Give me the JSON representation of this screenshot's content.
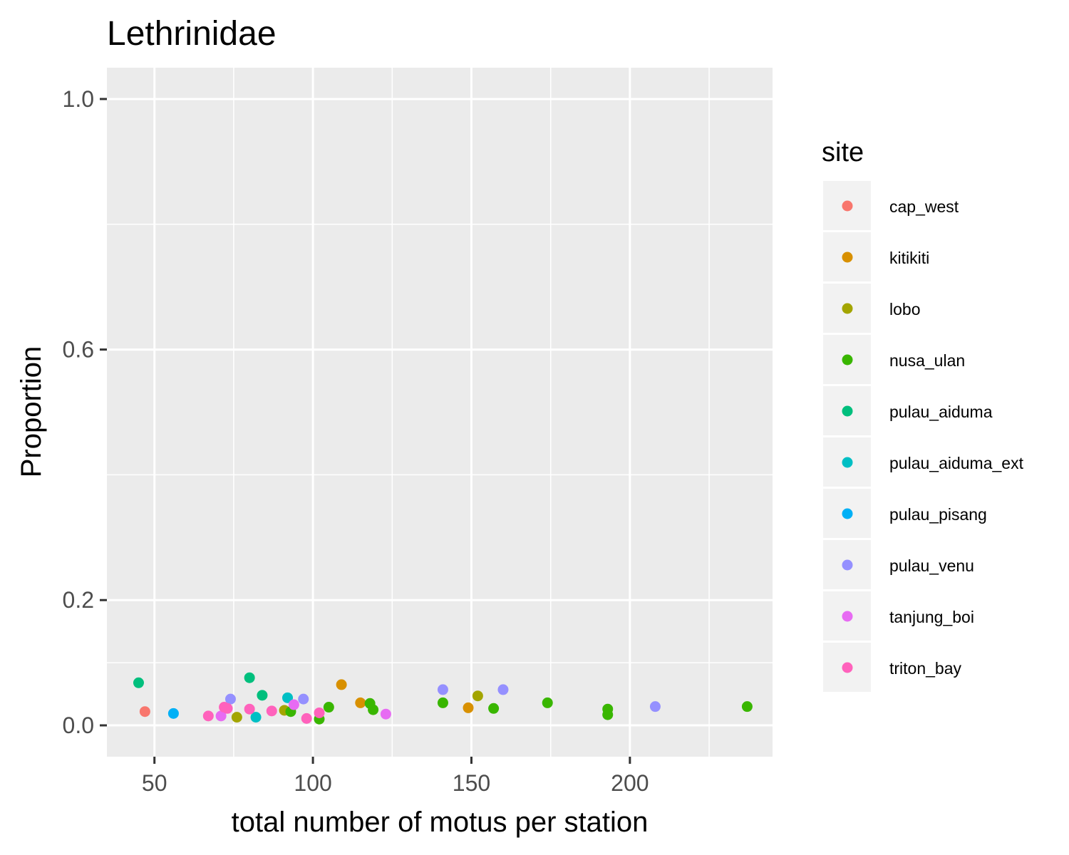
{
  "chart_data": {
    "type": "scatter",
    "title": "Lethrinidae",
    "xlabel": "total number of motus per station",
    "ylabel": "Proportion",
    "xlim": [
      35,
      245
    ],
    "ylim": [
      -0.05,
      1.05
    ],
    "x_ticks": [
      50,
      100,
      150,
      200
    ],
    "x_tick_labels": [
      "50",
      "100",
      "150",
      "200"
    ],
    "y_ticks": [
      0.0,
      0.2,
      0.6,
      1.0
    ],
    "y_tick_labels": [
      "0.0",
      "0.2",
      "0.6",
      "1.0"
    ],
    "y_minor_ticks": [
      0.1,
      0.4,
      0.8
    ],
    "grid": true,
    "legend": {
      "title": "site",
      "position": "right"
    },
    "series": [
      {
        "name": "cap_west",
        "color": "#F8766D",
        "points": [
          [
            47,
            0.022
          ]
        ]
      },
      {
        "name": "kitikiti",
        "color": "#D89000",
        "points": [
          [
            109,
            0.065
          ],
          [
            115,
            0.036
          ],
          [
            149,
            0.028
          ]
        ]
      },
      {
        "name": "lobo",
        "color": "#A3A500",
        "points": [
          [
            76,
            0.013
          ],
          [
            91,
            0.024
          ],
          [
            152,
            0.047
          ]
        ]
      },
      {
        "name": "nusa_ulan",
        "color": "#39B600",
        "points": [
          [
            93,
            0.022
          ],
          [
            102,
            0.01
          ],
          [
            105,
            0.029
          ],
          [
            118,
            0.035
          ],
          [
            119,
            0.025
          ],
          [
            141,
            0.036
          ],
          [
            157,
            0.027
          ],
          [
            174,
            0.036
          ],
          [
            193,
            0.026
          ],
          [
            193,
            0.017
          ],
          [
            237,
            0.03
          ]
        ]
      },
      {
        "name": "pulau_aiduma",
        "color": "#00BF7D",
        "points": [
          [
            45,
            0.068
          ],
          [
            80,
            0.076
          ],
          [
            84,
            0.048
          ]
        ]
      },
      {
        "name": "pulau_aiduma_ext",
        "color": "#00BFC4",
        "points": [
          [
            82,
            0.013
          ],
          [
            92,
            0.044
          ]
        ]
      },
      {
        "name": "pulau_pisang",
        "color": "#00B0F6",
        "points": [
          [
            56,
            0.019
          ]
        ]
      },
      {
        "name": "pulau_venu",
        "color": "#9590FF",
        "points": [
          [
            74,
            0.042
          ],
          [
            97,
            0.042
          ],
          [
            141,
            0.057
          ],
          [
            160,
            0.057
          ],
          [
            208,
            0.03
          ]
        ]
      },
      {
        "name": "tanjung_boi",
        "color": "#E76BF3",
        "points": [
          [
            71,
            0.015
          ],
          [
            94,
            0.033
          ],
          [
            123,
            0.018
          ]
        ]
      },
      {
        "name": "triton_bay",
        "color": "#FF62BC",
        "points": [
          [
            67,
            0.015
          ],
          [
            72,
            0.029
          ],
          [
            73,
            0.027
          ],
          [
            80,
            0.026
          ],
          [
            87,
            0.023
          ],
          [
            98,
            0.011
          ],
          [
            102,
            0.02
          ]
        ]
      }
    ]
  }
}
